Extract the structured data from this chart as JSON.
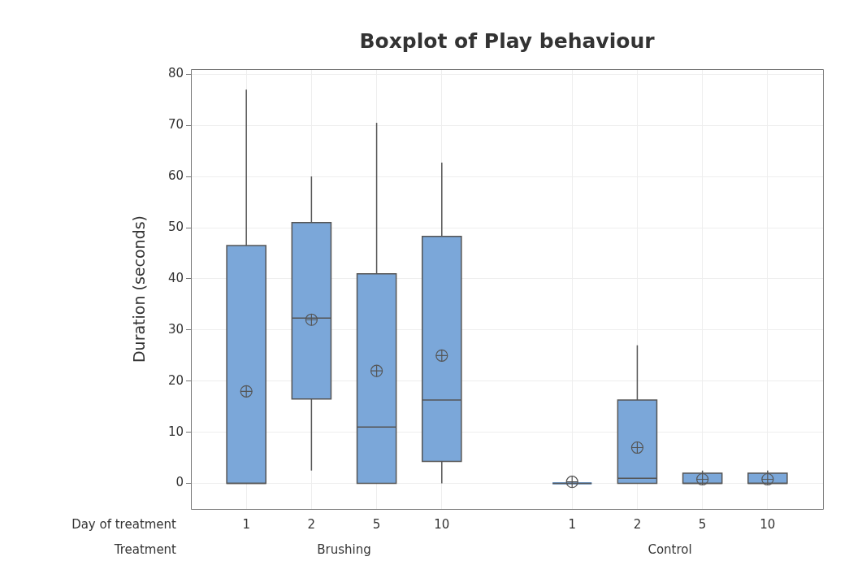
{
  "chart_data": {
    "type": "box",
    "title": "Boxplot of Play behaviour",
    "ylabel": "Duration (seconds)",
    "xlabel": "Day of treatment",
    "categories": [
      "1",
      "2",
      "5",
      "10",
      null,
      "1",
      "2",
      "5",
      "10"
    ],
    "annotations": [
      "Treatment",
      "Brushing",
      "Control"
    ],
    "series": [
      {
        "color": "#7ba7d9",
        "boxes": [
          {
            "low": 0,
            "q1": 0,
            "median": 0,
            "q3": 46.5,
            "high": 77,
            "mean": 18
          },
          {
            "low": 2.5,
            "q1": 16.5,
            "median": 32.3,
            "q3": 51,
            "high": 60,
            "mean": 32
          },
          {
            "low": 0,
            "q1": 0,
            "median": 11,
            "q3": 41,
            "high": 70.5,
            "mean": 22
          },
          {
            "low": 0,
            "q1": 4.3,
            "median": 16.3,
            "q3": 48.3,
            "high": 62.7,
            "mean": 25
          },
          null,
          {
            "low": 0,
            "q1": 0,
            "median": 0,
            "q3": 0,
            "high": 0,
            "mean": 0.3
          },
          {
            "low": 0,
            "q1": 0,
            "median": 1,
            "q3": 16.3,
            "high": 27,
            "mean": 7
          },
          {
            "low": 0,
            "q1": 0,
            "median": 0,
            "q3": 2,
            "high": 2.5,
            "mean": 0.8
          },
          {
            "low": 0,
            "q1": 0,
            "median": 0,
            "q3": 2,
            "high": 2.5,
            "mean": 0.8
          }
        ]
      }
    ],
    "ylim": [
      -5,
      81
    ],
    "yticks": [
      0,
      10,
      20,
      30,
      40,
      50,
      60,
      70,
      80
    ],
    "grid": true,
    "legend": false,
    "marker": "circle"
  }
}
